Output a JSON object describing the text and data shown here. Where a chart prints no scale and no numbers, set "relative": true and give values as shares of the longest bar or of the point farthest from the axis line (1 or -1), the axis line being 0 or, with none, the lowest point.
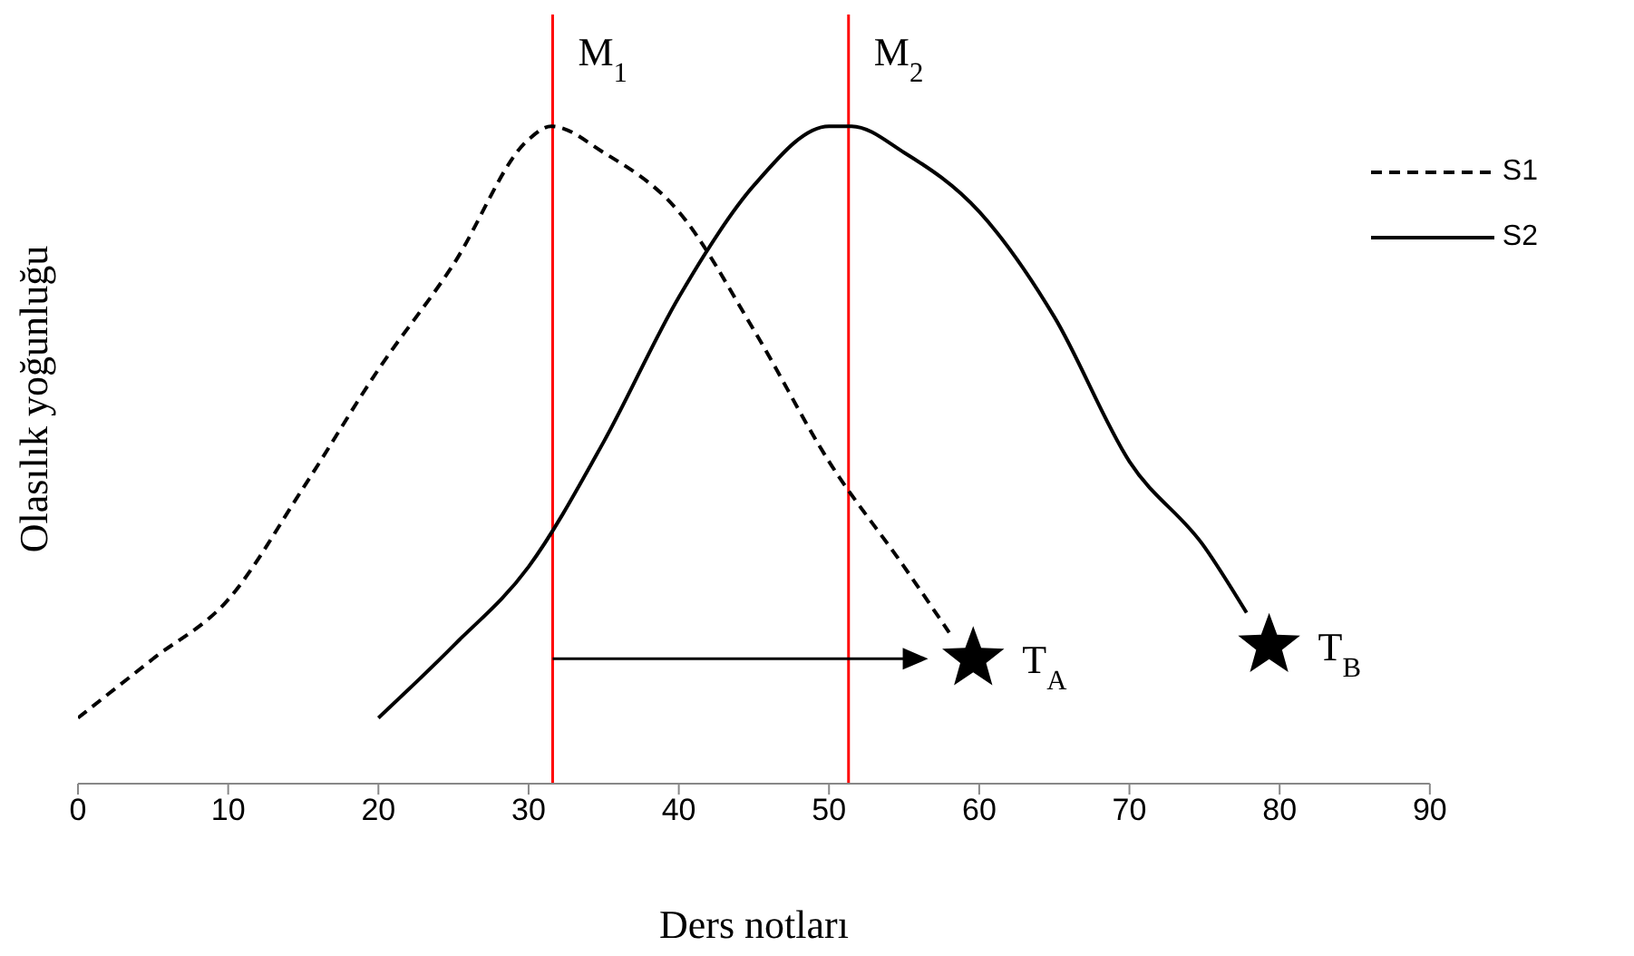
{
  "chart_data": {
    "type": "line",
    "xlabel": "Ders notları",
    "ylabel": "Olasılık  yoğunluğu",
    "relative": true,
    "xlim": [
      0,
      90
    ],
    "xticks": [
      0,
      10,
      20,
      30,
      40,
      50,
      60,
      70,
      80,
      90
    ],
    "tick_labels": "x",
    "grid": false,
    "legend": "top right",
    "marker": "none",
    "series": [
      {
        "name": "S1",
        "color": "#000000",
        "line_style": "dashed",
        "x": [
          0,
          5,
          10,
          15,
          20,
          25,
          30,
          31.5,
          35,
          40,
          45,
          50,
          55,
          58
        ],
        "values": [
          0.1,
          0.19,
          0.28,
          0.45,
          0.63,
          0.79,
          0.98,
          1.0,
          0.96,
          0.87,
          0.69,
          0.49,
          0.33,
          0.23
        ]
      },
      {
        "name": "S2",
        "color": "#000000",
        "line_style": "solid",
        "x": [
          20,
          25,
          30,
          35,
          40,
          45,
          50,
          51.5,
          55,
          60,
          65,
          70,
          75,
          77.8
        ],
        "values": [
          0.1,
          0.21,
          0.33,
          0.52,
          0.74,
          0.91,
          1.0,
          1.0,
          0.96,
          0.87,
          0.71,
          0.49,
          0.36,
          0.26
        ]
      }
    ],
    "ref_lines": [
      {
        "axis": "x",
        "value": 31.6,
        "label": "M$_{1}$",
        "color": "#ff0000"
      },
      {
        "axis": "x",
        "value": 51.3,
        "label": "M$_{2}$",
        "color": "#ff0000"
      }
    ],
    "annotations": [
      {
        "text": "T$_{A}$",
        "x": 59.6,
        "y": 0.19
      },
      {
        "text": "T$_{B}$",
        "x": 79.3,
        "y": 0.21
      }
    ]
  }
}
